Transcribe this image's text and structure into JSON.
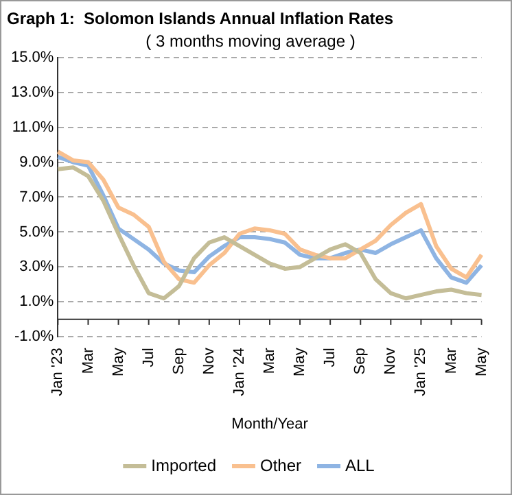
{
  "chart_data": {
    "type": "line",
    "title": "Graph 1:  Solomon Islands Annual Inflation Rates",
    "subtitle": "( 3 months moving average )",
    "xlabel": "Month/Year",
    "categories": [
      "Jan '23",
      null,
      "Mar",
      null,
      "May",
      null,
      "Jul",
      null,
      "Sep",
      null,
      "Nov",
      null,
      "Jan '24",
      null,
      "Mar",
      null,
      "May",
      null,
      "Jul",
      null,
      "Sep",
      null,
      "Nov",
      null,
      "Jan '25",
      null,
      "Mar",
      null,
      "May"
    ],
    "series": [
      {
        "name": "Imported",
        "color": "#c4bd97",
        "values": [
          8.6,
          8.7,
          8.2,
          6.8,
          4.9,
          3.1,
          1.5,
          1.2,
          1.9,
          3.5,
          4.4,
          4.7,
          4.2,
          3.7,
          3.2,
          2.9,
          3.0,
          3.5,
          4.0,
          4.3,
          3.8,
          2.3,
          1.5,
          1.2,
          1.4,
          1.6,
          1.7,
          1.5,
          1.4
        ]
      },
      {
        "name": "Other",
        "color": "#f9c08f",
        "values": [
          9.6,
          9.1,
          9.0,
          8.0,
          6.4,
          6.0,
          5.3,
          3.3,
          2.3,
          2.1,
          3.1,
          3.8,
          4.9,
          5.2,
          5.1,
          4.9,
          4.0,
          3.7,
          3.5,
          3.5,
          4.0,
          4.5,
          5.4,
          6.1,
          6.6,
          4.2,
          2.9,
          2.4,
          3.7
        ]
      },
      {
        "name": "ALL",
        "color": "#8eb4e3",
        "values": [
          9.3,
          9.0,
          8.8,
          7.1,
          5.2,
          4.6,
          4.0,
          3.2,
          2.8,
          2.7,
          3.6,
          4.2,
          4.7,
          4.7,
          4.6,
          4.4,
          3.7,
          3.5,
          3.5,
          3.8,
          4.0,
          3.8,
          4.3,
          4.7,
          5.1,
          3.5,
          2.4,
          2.1,
          3.1
        ]
      }
    ],
    "ylim": [
      -1,
      15
    ],
    "yticks": [
      {
        "value": -1,
        "label": "-1.0%"
      },
      {
        "value": 1,
        "label": "1.0%"
      },
      {
        "value": 3,
        "label": "3.0%"
      },
      {
        "value": 5,
        "label": "5.0%"
      },
      {
        "value": 7,
        "label": "7.0%"
      },
      {
        "value": 9,
        "label": "9.0%"
      },
      {
        "value": 11,
        "label": "11.0%"
      },
      {
        "value": 13,
        "label": "13.0%"
      },
      {
        "value": 15,
        "label": "15.0%"
      }
    ],
    "grid": "y",
    "legend": "bottom",
    "marker": "none",
    "line_style": "solid"
  }
}
